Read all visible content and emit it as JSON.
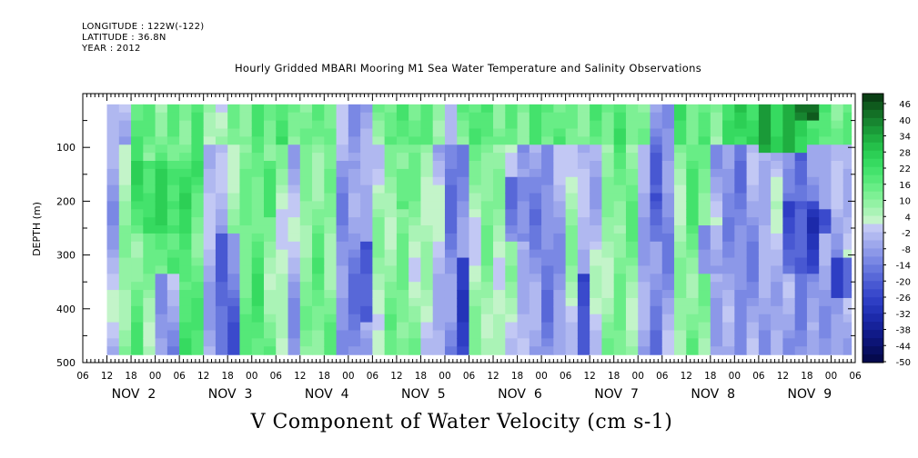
{
  "header": {
    "longitude": "LONGITUDE : 122W(-122)",
    "latitude": "LATITUDE : 36.8N",
    "year": "YEAR : 2012"
  },
  "title": "Hourly Gridded MBARI Mooring M1 Sea Water Temperature and Salinity Observations",
  "caption": "V Component of Water Velocity (cm s-1)",
  "chart_data": {
    "type": "heatmap",
    "variable": "V Component of Water Velocity (cm s-1)",
    "ylabel": "DEPTH (m)",
    "ylim": [
      500,
      0
    ],
    "y_axis_inverted": true,
    "y_ticks": [
      100,
      200,
      300,
      400,
      500
    ],
    "data_depth_range": [
      20,
      485
    ],
    "x_hour_ticks": [
      "06",
      "12",
      "18",
      "00",
      "06",
      "12",
      "18",
      "00",
      "06",
      "12",
      "18",
      "00",
      "06",
      "12",
      "18",
      "00",
      "06",
      "12",
      "18",
      "00",
      "06",
      "12",
      "18",
      "00",
      "06",
      "12",
      "18",
      "00",
      "06",
      "12",
      "18",
      "00",
      "06"
    ],
    "x_day_labels": [
      {
        "label": "NOV  2",
        "hour": 24
      },
      {
        "label": "NOV  3",
        "hour": 48
      },
      {
        "label": "NOV  4",
        "hour": 72
      },
      {
        "label": "NOV  5",
        "hour": 96
      },
      {
        "label": "NOV  6",
        "hour": 120
      },
      {
        "label": "NOV  7",
        "hour": 144
      },
      {
        "label": "NOV  8",
        "hour": 168
      },
      {
        "label": "NOV  9",
        "hour": 192
      }
    ],
    "time_range_hours": [
      6,
      198
    ],
    "data_time_range_hours": [
      12,
      197
    ],
    "colorbar": {
      "labels": [
        "46",
        "40",
        "34",
        "28",
        "22",
        "16",
        "10",
        "4",
        "-2",
        "-8",
        "-14",
        "-20",
        "-26",
        "-32",
        "-38",
        "-44",
        "-50"
      ],
      "levels": [
        {
          "min": 46,
          "max": 52,
          "color": "#0a3f14"
        },
        {
          "min": 43,
          "max": 46,
          "color": "#0f5a1d"
        },
        {
          "min": 40,
          "max": 43,
          "color": "#137026"
        },
        {
          "min": 37,
          "max": 40,
          "color": "#178530"
        },
        {
          "min": 34,
          "max": 37,
          "color": "#1a9a38"
        },
        {
          "min": 31,
          "max": 34,
          "color": "#1fae40"
        },
        {
          "min": 28,
          "max": 31,
          "color": "#25c04a"
        },
        {
          "min": 25,
          "max": 28,
          "color": "#2ccf55"
        },
        {
          "min": 22,
          "max": 25,
          "color": "#36da60"
        },
        {
          "min": 19,
          "max": 22,
          "color": "#44e26c"
        },
        {
          "min": 16,
          "max": 19,
          "color": "#55e878"
        },
        {
          "min": 13,
          "max": 16,
          "color": "#68ed86"
        },
        {
          "min": 10,
          "max": 13,
          "color": "#7df094"
        },
        {
          "min": 7,
          "max": 10,
          "color": "#93f2a4"
        },
        {
          "min": 4,
          "max": 7,
          "color": "#aaf3b6"
        },
        {
          "min": 1,
          "max": 4,
          "color": "#c3f4c9"
        },
        {
          "min": -2,
          "max": 1,
          "color": "#c2c8f4"
        },
        {
          "min": -5,
          "max": -2,
          "color": "#b0b8f0"
        },
        {
          "min": -8,
          "max": -5,
          "color": "#9ea8ec"
        },
        {
          "min": -11,
          "max": -8,
          "color": "#8c98e8"
        },
        {
          "min": -14,
          "max": -11,
          "color": "#7a88e4"
        },
        {
          "min": -17,
          "max": -14,
          "color": "#6878de"
        },
        {
          "min": -20,
          "max": -17,
          "color": "#5868d8"
        },
        {
          "min": -23,
          "max": -20,
          "color": "#4858d2"
        },
        {
          "min": -26,
          "max": -23,
          "color": "#3a4acc"
        },
        {
          "min": -29,
          "max": -26,
          "color": "#2e3ec4"
        },
        {
          "min": -32,
          "max": -29,
          "color": "#2434b8"
        },
        {
          "min": -35,
          "max": -32,
          "color": "#1c2aaa"
        },
        {
          "min": -38,
          "max": -35,
          "color": "#16229a"
        },
        {
          "min": -41,
          "max": -38,
          "color": "#101a88"
        },
        {
          "min": -44,
          "max": -41,
          "color": "#0c1476"
        },
        {
          "min": -47,
          "max": -44,
          "color": "#080f62"
        },
        {
          "min": -52,
          "max": -47,
          "color": "#050a4e"
        }
      ]
    },
    "time_bands": [
      {
        "t0": 12,
        "t1": 15,
        "v": -6
      },
      {
        "t0": 15,
        "t1": 18,
        "v": 8
      },
      {
        "t0": 18,
        "t1": 21,
        "v": 14
      },
      {
        "t0": 21,
        "t1": 24,
        "v": 10
      },
      {
        "t0": 24,
        "t1": 27,
        "v": 16
      },
      {
        "t0": 27,
        "t1": 30,
        "v": 12
      },
      {
        "t0": 30,
        "t1": 33,
        "v": 18
      },
      {
        "t0": 33,
        "t1": 36,
        "v": 14
      },
      {
        "t0": 36,
        "t1": 39,
        "v": -4
      },
      {
        "t0": 39,
        "t1": 42,
        "v": -8
      },
      {
        "t0": 42,
        "t1": 45,
        "v": 6
      },
      {
        "t0": 45,
        "t1": 48,
        "v": 12
      },
      {
        "t0": 48,
        "t1": 51,
        "v": 16
      },
      {
        "t0": 51,
        "t1": 54,
        "v": 10
      },
      {
        "t0": 54,
        "t1": 57,
        "v": 4
      },
      {
        "t0": 57,
        "t1": 60,
        "v": -6
      },
      {
        "t0": 60,
        "t1": 63,
        "v": 8
      },
      {
        "t0": 63,
        "t1": 66,
        "v": 12
      },
      {
        "t0": 66,
        "t1": 69,
        "v": 10
      },
      {
        "t0": 69,
        "t1": 72,
        "v": -10
      },
      {
        "t0": 72,
        "t1": 75,
        "v": -12
      },
      {
        "t0": 75,
        "t1": 78,
        "v": -6
      },
      {
        "t0": 78,
        "t1": 81,
        "v": 4
      },
      {
        "t0": 81,
        "t1": 84,
        "v": 8
      },
      {
        "t0": 84,
        "t1": 87,
        "v": 12
      },
      {
        "t0": 87,
        "t1": 90,
        "v": 8
      },
      {
        "t0": 90,
        "t1": 93,
        "v": 4
      },
      {
        "t0": 93,
        "t1": 96,
        "v": -4
      },
      {
        "t0": 96,
        "t1": 99,
        "v": -14
      },
      {
        "t0": 99,
        "t1": 102,
        "v": -10
      },
      {
        "t0": 102,
        "t1": 105,
        "v": 6
      },
      {
        "t0": 105,
        "t1": 108,
        "v": 10
      },
      {
        "t0": 108,
        "t1": 111,
        "v": 4
      },
      {
        "t0": 111,
        "t1": 114,
        "v": 2
      },
      {
        "t0": 114,
        "t1": 117,
        "v": -6
      },
      {
        "t0": 117,
        "t1": 120,
        "v": -10
      },
      {
        "t0": 120,
        "t1": 123,
        "v": -12
      },
      {
        "t0": 123,
        "t1": 126,
        "v": -8
      },
      {
        "t0": 126,
        "t1": 129,
        "v": 4
      },
      {
        "t0": 129,
        "t1": 132,
        "v": -4
      },
      {
        "t0": 132,
        "t1": 135,
        "v": -2
      },
      {
        "t0": 135,
        "t1": 138,
        "v": 8
      },
      {
        "t0": 138,
        "t1": 141,
        "v": 12
      },
      {
        "t0": 141,
        "t1": 144,
        "v": 10
      },
      {
        "t0": 144,
        "t1": 147,
        "v": -8
      },
      {
        "t0": 147,
        "t1": 150,
        "v": -14
      },
      {
        "t0": 150,
        "t1": 153,
        "v": -10
      },
      {
        "t0": 153,
        "t1": 156,
        "v": 8
      },
      {
        "t0": 156,
        "t1": 159,
        "v": 14
      },
      {
        "t0": 159,
        "t1": 162,
        "v": 10
      },
      {
        "t0": 162,
        "t1": 165,
        "v": -6
      },
      {
        "t0": 165,
        "t1": 168,
        "v": -10
      },
      {
        "t0": 168,
        "t1": 171,
        "v": -12
      },
      {
        "t0": 171,
        "t1": 174,
        "v": -8
      },
      {
        "t0": 174,
        "t1": 177,
        "v": -6
      },
      {
        "t0": 177,
        "t1": 180,
        "v": -4
      },
      {
        "t0": 180,
        "t1": 183,
        "v": -10
      },
      {
        "t0": 183,
        "t1": 186,
        "v": -14
      },
      {
        "t0": 186,
        "t1": 189,
        "v": -12
      },
      {
        "t0": 189,
        "t1": 192,
        "v": -6
      },
      {
        "t0": 192,
        "t1": 195,
        "v": -8
      },
      {
        "t0": 195,
        "t1": 197,
        "v": -4
      }
    ],
    "features": [
      {
        "t0": 12,
        "t1": 197,
        "d0": 20,
        "d1": 90,
        "v": 14
      },
      {
        "t0": 12,
        "t1": 18,
        "d0": 20,
        "d1": 90,
        "v": -6
      },
      {
        "t0": 36,
        "t1": 42,
        "d0": 20,
        "d1": 90,
        "v": 4
      },
      {
        "t0": 70,
        "t1": 78,
        "d0": 20,
        "d1": 120,
        "v": -8
      },
      {
        "t0": 96,
        "t1": 100,
        "d0": 20,
        "d1": 90,
        "v": -6
      },
      {
        "t0": 146,
        "t1": 152,
        "d0": 20,
        "d1": 90,
        "v": -10
      },
      {
        "t0": 166,
        "t1": 174,
        "d0": 20,
        "d1": 90,
        "v": 22
      },
      {
        "t0": 174,
        "t1": 186,
        "d0": 20,
        "d1": 110,
        "v": 30
      },
      {
        "t0": 184,
        "t1": 188,
        "d0": 20,
        "d1": 50,
        "v": 40
      },
      {
        "t0": 18,
        "t1": 36,
        "d0": 120,
        "d1": 260,
        "v": 20
      },
      {
        "t0": 27,
        "t1": 33,
        "d0": 140,
        "d1": 220,
        "v": 24
      },
      {
        "t0": 48,
        "t1": 54,
        "d0": 120,
        "d1": 230,
        "v": 18
      },
      {
        "t0": 84,
        "t1": 88,
        "d0": 140,
        "d1": 210,
        "v": 20
      },
      {
        "t0": 24,
        "t1": 30,
        "d0": 330,
        "d1": 485,
        "v": -10
      },
      {
        "t0": 39,
        "t1": 44,
        "d0": 260,
        "d1": 485,
        "v": -18
      },
      {
        "t0": 74,
        "t1": 78,
        "d0": 280,
        "d1": 420,
        "v": -24
      },
      {
        "t0": 98,
        "t1": 102,
        "d0": 300,
        "d1": 485,
        "v": -28
      },
      {
        "t0": 128,
        "t1": 132,
        "d0": 340,
        "d1": 485,
        "v": -26
      },
      {
        "t0": 146,
        "t1": 150,
        "d0": 180,
        "d1": 280,
        "v": -20
      },
      {
        "t0": 180,
        "t1": 190,
        "d0": 200,
        "d1": 340,
        "v": -22
      },
      {
        "t0": 186,
        "t1": 192,
        "d0": 220,
        "d1": 260,
        "v": -26
      },
      {
        "t0": 192,
        "t1": 197,
        "d0": 300,
        "d1": 380,
        "v": -24
      },
      {
        "t0": 110,
        "t1": 116,
        "d0": 160,
        "d1": 280,
        "v": -14
      },
      {
        "t0": 160,
        "t1": 164,
        "d0": 240,
        "d1": 340,
        "v": -12
      }
    ]
  }
}
